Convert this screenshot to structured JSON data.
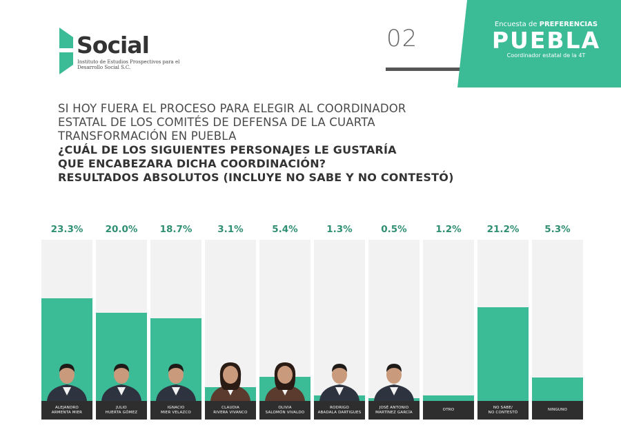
{
  "brand": {
    "logo_word": "Social",
    "logo_subtitle": "Instituto de Estudios Prospectivos para el Desarrollo Social S.C.",
    "page_number": "02",
    "banner_prefix": "Encuesta de ",
    "banner_prefix_bold": "PREFERENCIAS",
    "banner_title": "PUEBLA",
    "banner_subtitle": "Coordinador estatal de la 4T",
    "accent_color": "#3cbb97"
  },
  "question": {
    "line1": "SI HOY FUERA EL PROCESO PARA ELEGIR AL COORDINADOR",
    "line2": "ESTATAL DE LOS COMITÉS DE DEFENSA DE LA CUARTA",
    "line3": "TRANSFORMACIÓN EN PUEBLA",
    "line4": "¿CUÁL DE LOS SIGUIENTES PERSONAJES LE GUSTARÍA",
    "line5": "QUE ENCABEZARA DICHA COORDINACIÓN?",
    "line6": "RESULTADOS ABSOLUTOS (INCLUYE NO SABE Y NO CONTESTÓ)"
  },
  "chart_data": {
    "type": "bar",
    "categories": [
      "ALEJANDRO ARMENTA MIER",
      "JULIO HUERTA GÓMEZ",
      "IGNACIO MIER VELAZCO",
      "CLAUDIA RIVERA VIVANCO",
      "OLIVIA SALOMÓN VIVALDO",
      "RODRIGO ABADALA DARTIGUES",
      "JOSÉ ANTONIO MARTÍNEZ GARCÍA",
      "OTRO",
      "NO SABE/ NO CONTESTÓ",
      "NINGUNO"
    ],
    "display_labels": [
      "ALEJANDRO\nARMENTA MIER",
      "JULIO\nHUERTA GÓMEZ",
      "IGNACIO\nMIER VELAZCO",
      "CLAUDIA\nRIVERA VIVANCO",
      "OLIVIA\nSALOMÓN VIVALDO",
      "RODRIGO\nABADALA DARTIGUES",
      "JOSÉ ANTONIO\nMARTÍNEZ GARCÍA",
      "OTRO",
      "NO SABE/\nNO CONTESTÓ",
      "NINGUNO"
    ],
    "values": [
      23.3,
      20.0,
      18.7,
      3.1,
      5.4,
      1.3,
      0.5,
      1.2,
      21.2,
      5.3
    ],
    "value_labels": [
      "23.3%",
      "20.0%",
      "18.7%",
      "3.1%",
      "5.4%",
      "1.3%",
      "0.5%",
      "1.2%",
      "21.2%",
      "5.3%"
    ],
    "has_photo": [
      true,
      true,
      true,
      true,
      true,
      true,
      true,
      false,
      false,
      false
    ],
    "ylim": [
      0,
      100
    ]
  }
}
